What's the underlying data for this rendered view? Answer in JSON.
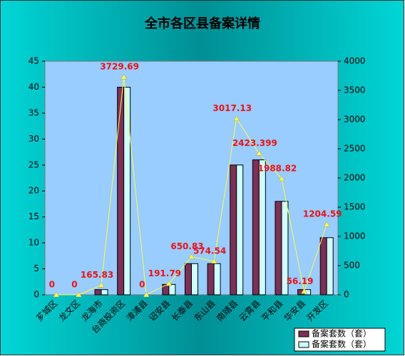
{
  "chart_data": {
    "type": "bar_line",
    "title": "全市各区县备案详情",
    "categories": [
      "芗城区",
      "龙文区",
      "龙海市",
      "台商投资区",
      "漳浦县",
      "诏安县",
      "长泰县",
      "东山县",
      "南靖县",
      "云霄县",
      "平和县",
      "华安县",
      "开发区"
    ],
    "series": [
      {
        "name": "备案套数（套）",
        "color": "#7f2f55",
        "type": "bar",
        "values": [
          0,
          0,
          1,
          40,
          0,
          2,
          6,
          6,
          25,
          26,
          18,
          1,
          11
        ]
      },
      {
        "name": "备案套数（套）",
        "color": "#ccffff",
        "type": "bar",
        "values": [
          0,
          0,
          1,
          40,
          0,
          2,
          6,
          6,
          25,
          26,
          18,
          1,
          11
        ]
      },
      {
        "color": "#ffff33",
        "type": "line",
        "axis": "y2",
        "values": [
          0,
          0,
          165.83,
          3729.69,
          0,
          191.79,
          650.83,
          574.54,
          3017.13,
          2423.399,
          1988.82,
          56.19,
          1204.59
        ],
        "label_color": "#ee1111"
      }
    ],
    "ylim": [
      0,
      45
    ],
    "yticks": [
      0,
      5,
      10,
      15,
      20,
      25,
      30,
      35,
      40,
      45
    ],
    "y2lim": [
      0,
      4000
    ],
    "y2ticks": [
      0,
      500,
      1000,
      1500,
      2000,
      2500,
      3000,
      3500,
      4000
    ],
    "legend": "bottom-right"
  }
}
